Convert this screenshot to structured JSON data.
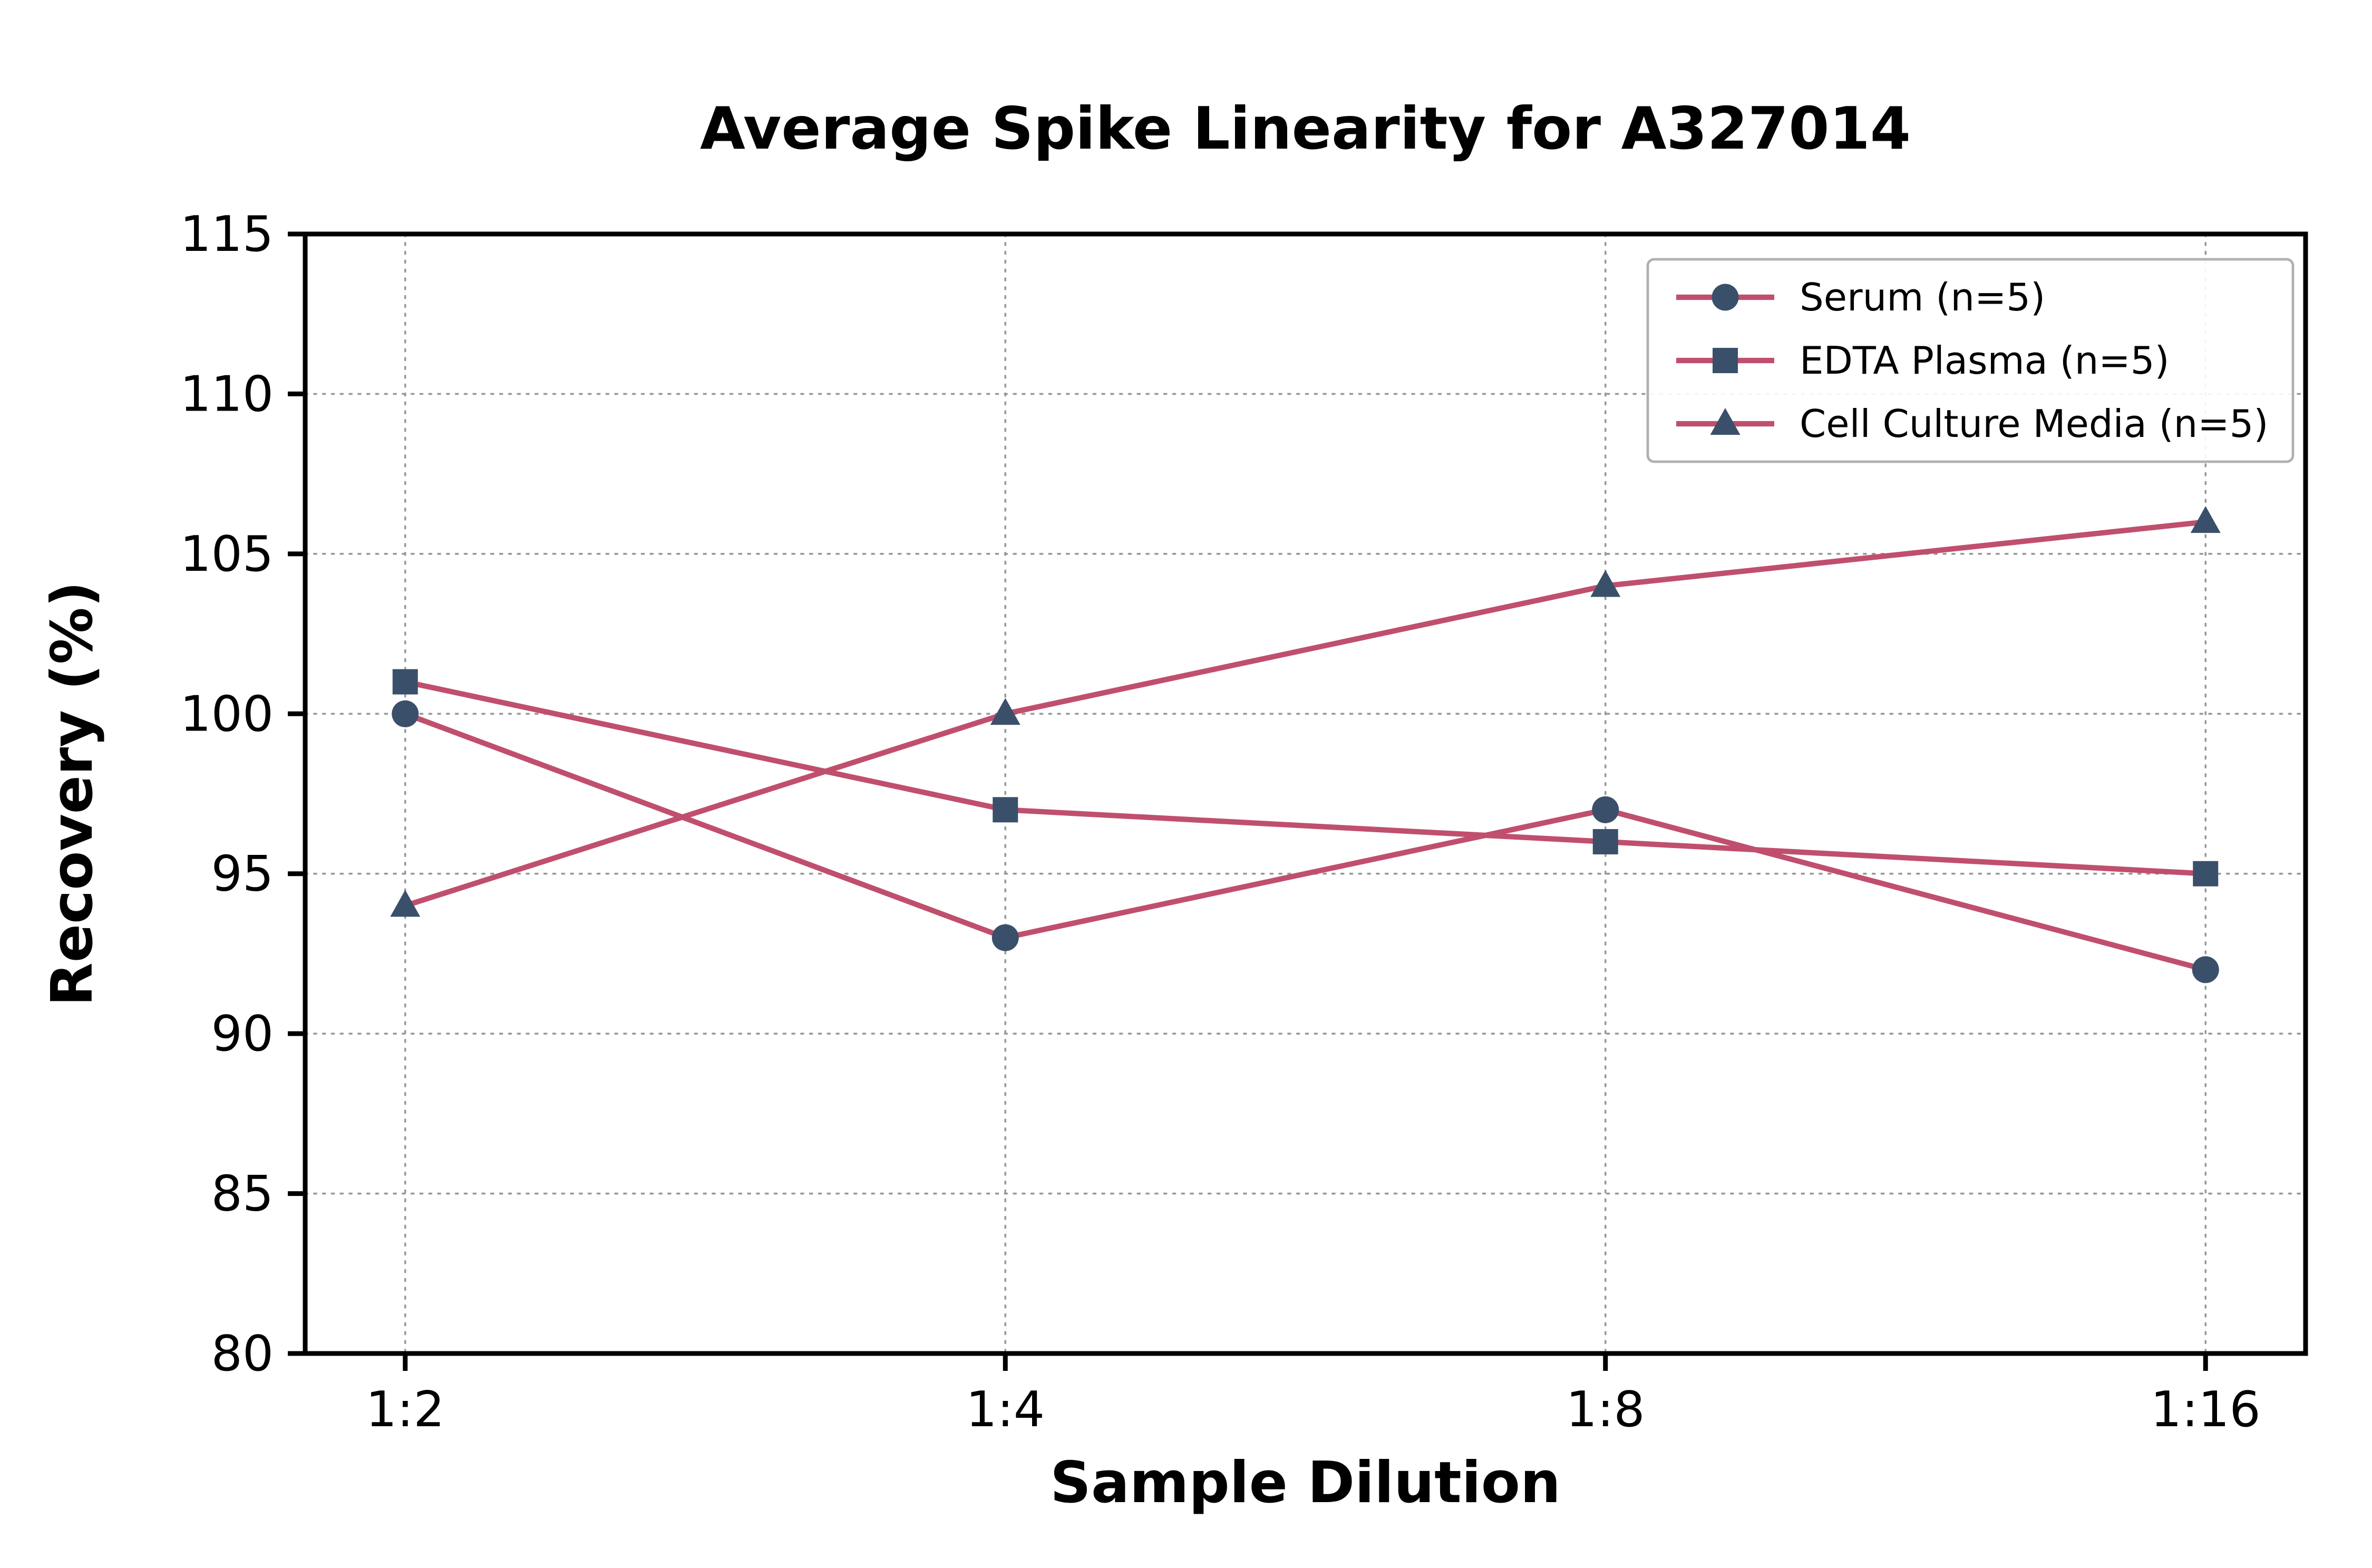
{
  "chart_data": {
    "type": "line",
    "title": "Average Spike Linearity for A327014",
    "xlabel": "Sample Dilution",
    "ylabel": "Recovery (%)",
    "categories": [
      "1:2",
      "1:4",
      "1:8",
      "1:16"
    ],
    "ylim": [
      80,
      115
    ],
    "yticks": [
      80,
      85,
      90,
      95,
      100,
      105,
      110,
      115
    ],
    "grid": true,
    "legend_position": "upper right",
    "line_color": "#c04f6d",
    "marker_color": "#3a506a",
    "grid_color": "#999999",
    "legend_border_color": "#b0b0b0",
    "series": [
      {
        "name": "Serum (n=5)",
        "marker": "circle",
        "values": [
          100,
          93,
          97,
          92
        ]
      },
      {
        "name": "EDTA Plasma (n=5)",
        "marker": "square",
        "values": [
          101,
          97,
          96,
          95
        ]
      },
      {
        "name": "Cell Culture Media (n=5)",
        "marker": "triangle",
        "values": [
          94,
          100,
          104,
          106
        ]
      }
    ]
  }
}
